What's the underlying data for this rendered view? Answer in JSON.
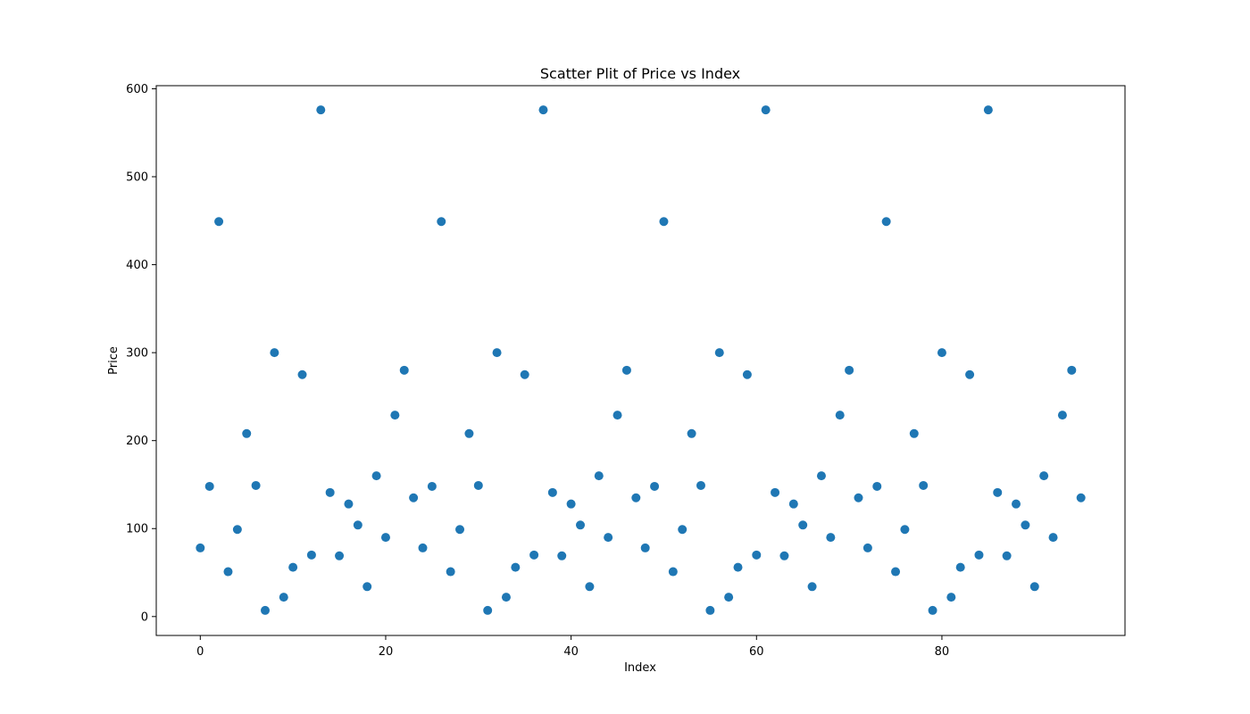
{
  "chart_data": {
    "type": "scatter",
    "title": "Scatter Plit of Price vs Index",
    "xlabel": "Index",
    "ylabel": "Price",
    "xlim": [
      -4.75,
      99.75
    ],
    "ylim": [
      -21.5,
      603.5
    ],
    "xticks": [
      0,
      20,
      40,
      60,
      80
    ],
    "yticks": [
      0,
      100,
      200,
      300,
      400,
      500,
      600
    ],
    "grid": false,
    "color": "#1f77b4",
    "series": [
      {
        "x": [
          0,
          1,
          2,
          3,
          4,
          5,
          6,
          7,
          8,
          9,
          10,
          11,
          12,
          13,
          14,
          15,
          16,
          17,
          18,
          19,
          20,
          21,
          22,
          23,
          24,
          25,
          26,
          27,
          28,
          29,
          30,
          31,
          32,
          33,
          34,
          35,
          36,
          37,
          38,
          39,
          40,
          41,
          42,
          43,
          44,
          45,
          46,
          47,
          48,
          49,
          50,
          51,
          52,
          53,
          54,
          55,
          56,
          57,
          58,
          59,
          60,
          61,
          62,
          63,
          64,
          65,
          66,
          67,
          68,
          69,
          70,
          71,
          72,
          73,
          74,
          75,
          76,
          77,
          78,
          79,
          80,
          81,
          82,
          83,
          84,
          85,
          86,
          87,
          88,
          89,
          90,
          91,
          92,
          93,
          94,
          95
        ],
        "y": [
          78,
          148,
          449,
          51,
          99,
          208,
          149,
          7,
          300,
          22,
          56,
          275,
          70,
          576,
          141,
          69,
          128,
          104,
          34,
          160,
          90,
          229,
          280,
          135,
          78,
          148,
          449,
          51,
          99,
          208,
          149,
          7,
          300,
          22,
          56,
          275,
          70,
          576,
          141,
          69,
          128,
          104,
          34,
          160,
          90,
          229,
          280,
          135,
          78,
          148,
          449,
          51,
          99,
          208,
          149,
          7,
          300,
          22,
          56,
          275,
          70,
          576,
          141,
          69,
          128,
          104,
          34,
          160,
          90,
          229,
          280,
          135,
          78,
          148,
          449,
          51,
          99,
          208,
          149,
          7,
          300,
          22,
          56,
          275,
          70,
          576,
          141,
          69,
          128,
          104,
          34,
          160,
          90,
          229,
          280,
          135
        ]
      }
    ]
  }
}
